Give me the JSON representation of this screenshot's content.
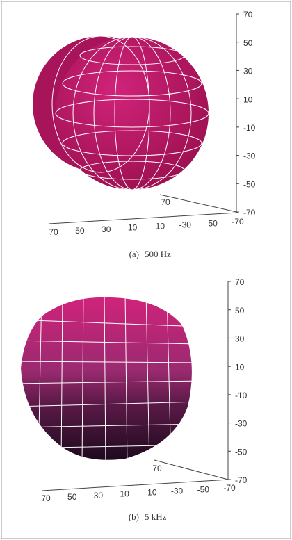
{
  "panels": [
    {
      "caption_label": "(a)",
      "caption": "500 Hz",
      "z_ticks": [
        70,
        50,
        30,
        10,
        -10,
        -30,
        -50,
        -70
      ],
      "x_ticks": [
        70,
        50,
        30,
        10,
        -10,
        -30,
        -50,
        -70
      ],
      "y_ticks": [
        70
      ]
    },
    {
      "caption_label": "(b)",
      "caption": "5 kHz",
      "z_ticks": [
        70,
        50,
        30,
        10,
        -10,
        -30,
        -50,
        -70
      ],
      "x_ticks": [
        70,
        50,
        30,
        10,
        -10,
        -30,
        -50,
        -70
      ],
      "y_ticks": [
        70
      ]
    }
  ]
}
